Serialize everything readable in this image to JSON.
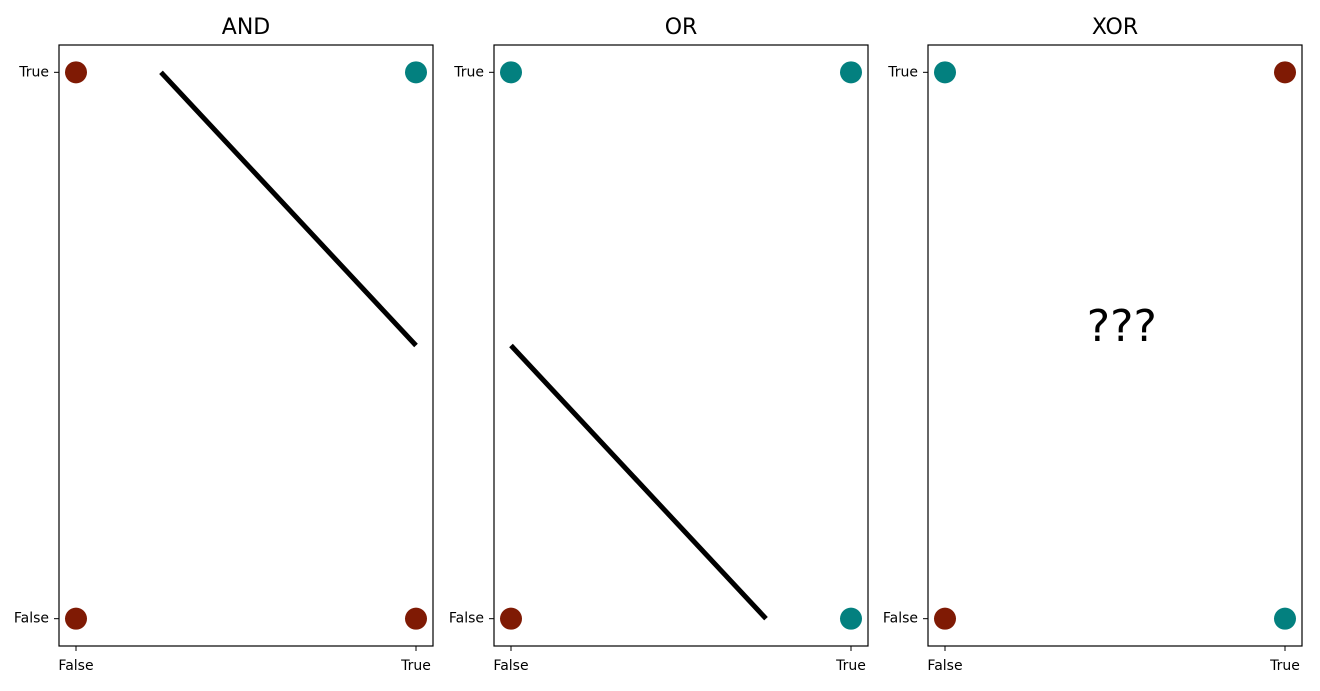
{
  "chart_data": [
    {
      "type": "scatter",
      "title": "AND",
      "x": [
        0,
        1,
        0,
        1
      ],
      "y": [
        0,
        0,
        1,
        1
      ],
      "colors": [
        "#7f1a04",
        "#7f1a04",
        "#7f1a04",
        "#03807f"
      ],
      "line": {
        "x": [
          0.25,
          1.0
        ],
        "y": [
          1.0,
          0.5
        ],
        "color": "#000000"
      },
      "xlim": [
        -0.05,
        1.05
      ],
      "ylim": [
        -0.05,
        1.05
      ],
      "xticks": [
        {
          "value": 0,
          "label": "False"
        },
        {
          "value": 1,
          "label": "True"
        }
      ],
      "yticks": [
        {
          "value": 0,
          "label": "False"
        },
        {
          "value": 1,
          "label": "True"
        }
      ]
    },
    {
      "type": "scatter",
      "title": "OR",
      "x": [
        0,
        1,
        0,
        1
      ],
      "y": [
        0,
        0,
        1,
        1
      ],
      "colors": [
        "#7f1a04",
        "#03807f",
        "#03807f",
        "#03807f"
      ],
      "line": {
        "x": [
          0.0,
          0.75
        ],
        "y": [
          0.5,
          0.0
        ],
        "color": "#000000"
      },
      "xlim": [
        -0.05,
        1.05
      ],
      "ylim": [
        -0.05,
        1.05
      ],
      "xticks": [
        {
          "value": 0,
          "label": "False"
        },
        {
          "value": 1,
          "label": "True"
        }
      ],
      "yticks": [
        {
          "value": 0,
          "label": "False"
        },
        {
          "value": 1,
          "label": "True"
        }
      ]
    },
    {
      "type": "scatter",
      "title": "XOR",
      "x": [
        0,
        1,
        0,
        1
      ],
      "y": [
        0,
        0,
        1,
        1
      ],
      "colors": [
        "#7f1a04",
        "#03807f",
        "#03807f",
        "#7f1a04"
      ],
      "annotation": {
        "text": "???",
        "x": 0.52,
        "y": 0.53
      },
      "xlim": [
        -0.05,
        1.05
      ],
      "ylim": [
        -0.05,
        1.05
      ],
      "xticks": [
        {
          "value": 0,
          "label": "False"
        },
        {
          "value": 1,
          "label": "True"
        }
      ],
      "yticks": [
        {
          "value": 0,
          "label": "False"
        },
        {
          "value": 1,
          "label": "True"
        }
      ]
    }
  ]
}
